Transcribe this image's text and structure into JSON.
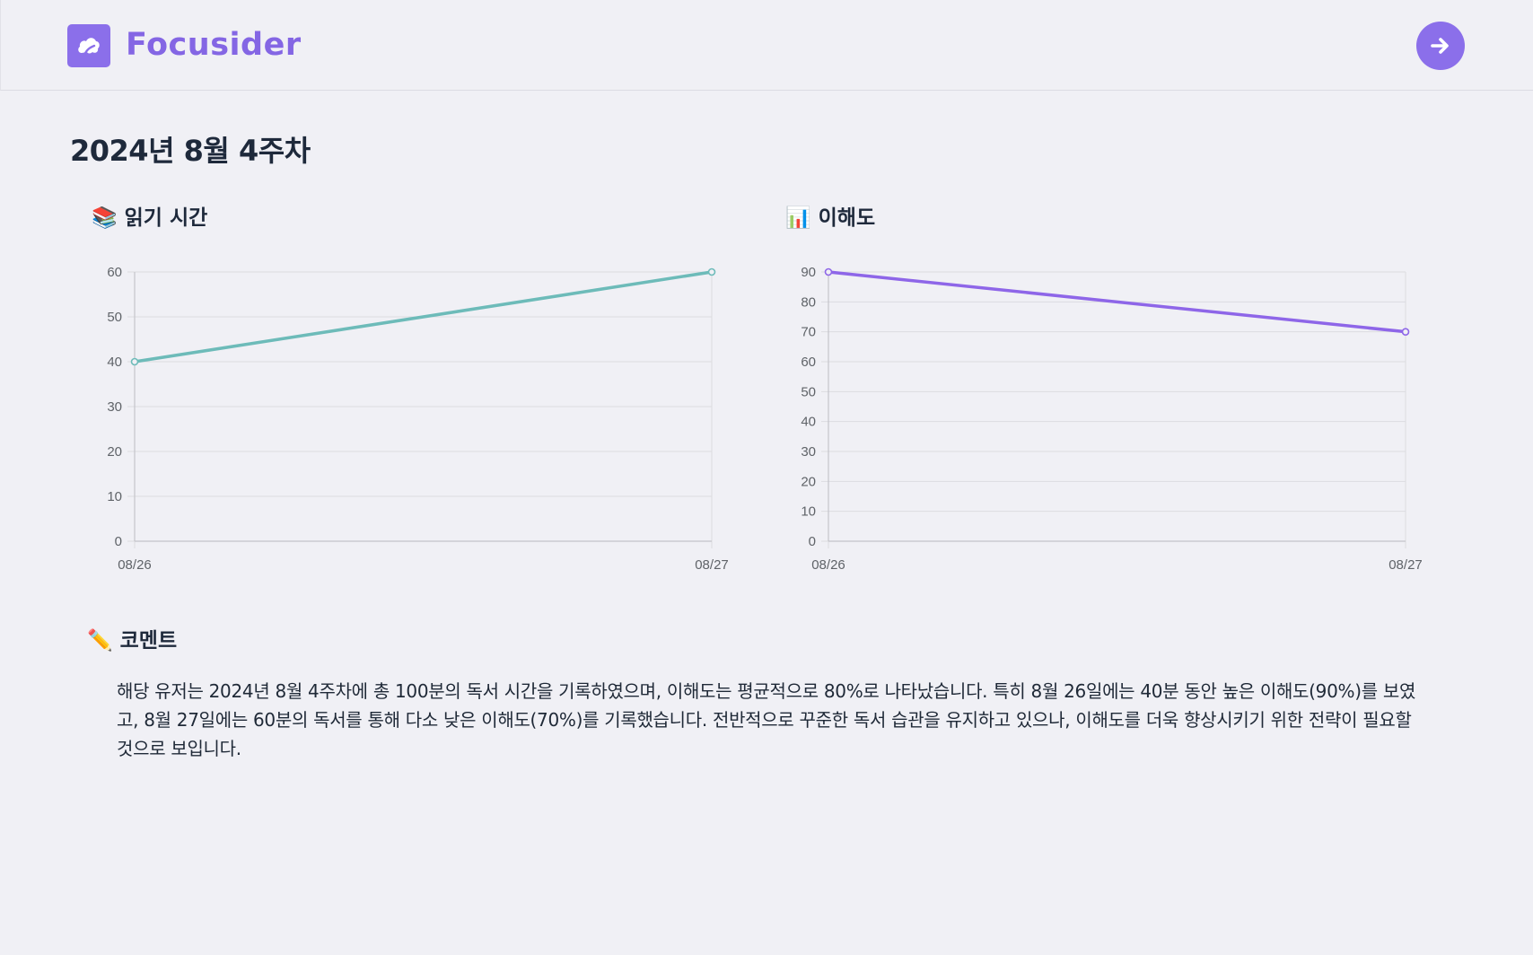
{
  "app": {
    "name": "Focusider"
  },
  "header": {
    "next_button_icon": "arrow-right-icon",
    "logo_icon": "cloud-leaf-icon"
  },
  "page": {
    "title": "2024년 8월 4주차"
  },
  "charts": {
    "reading": {
      "title": "📚 읽기 시간",
      "color": "#6dbbb9"
    },
    "comprehension": {
      "title": "📊 이해도",
      "color": "#8e66e8"
    }
  },
  "chart_data": [
    {
      "type": "line",
      "title": "📚 읽기 시간",
      "categories": [
        "08/26",
        "08/27"
      ],
      "series": [
        {
          "values": [
            40,
            60
          ]
        }
      ],
      "ylim": [
        0,
        60
      ],
      "yticks": [
        0,
        10,
        20,
        30,
        40,
        50,
        60
      ],
      "grid": true,
      "color": "#6dbbb9"
    },
    {
      "type": "line",
      "title": "📊 이해도",
      "categories": [
        "08/26",
        "08/27"
      ],
      "series": [
        {
          "values": [
            90,
            70
          ]
        }
      ],
      "ylim": [
        0,
        90
      ],
      "yticks": [
        0,
        10,
        20,
        30,
        40,
        50,
        60,
        70,
        80,
        90
      ],
      "grid": true,
      "color": "#8e66e8"
    }
  ],
  "comment": {
    "title": "✏️ 코멘트",
    "text": "해당 유저는 2024년 8월 4주차에 총 100분의 독서 시간을 기록하였으며, 이해도는 평균적으로 80%로 나타났습니다. 특히 8월 26일에는 40분 동안 높은 이해도(90%)를 보였고, 8월 27일에는 60분의 독서를 통해 다소 낮은 이해도(70%)를 기록했습니다. 전반적으로 꾸준한 독서 습관을 유지하고 있으나, 이해도를 더욱 향상시키기 위한 전략이 필요할 것으로 보입니다."
  }
}
